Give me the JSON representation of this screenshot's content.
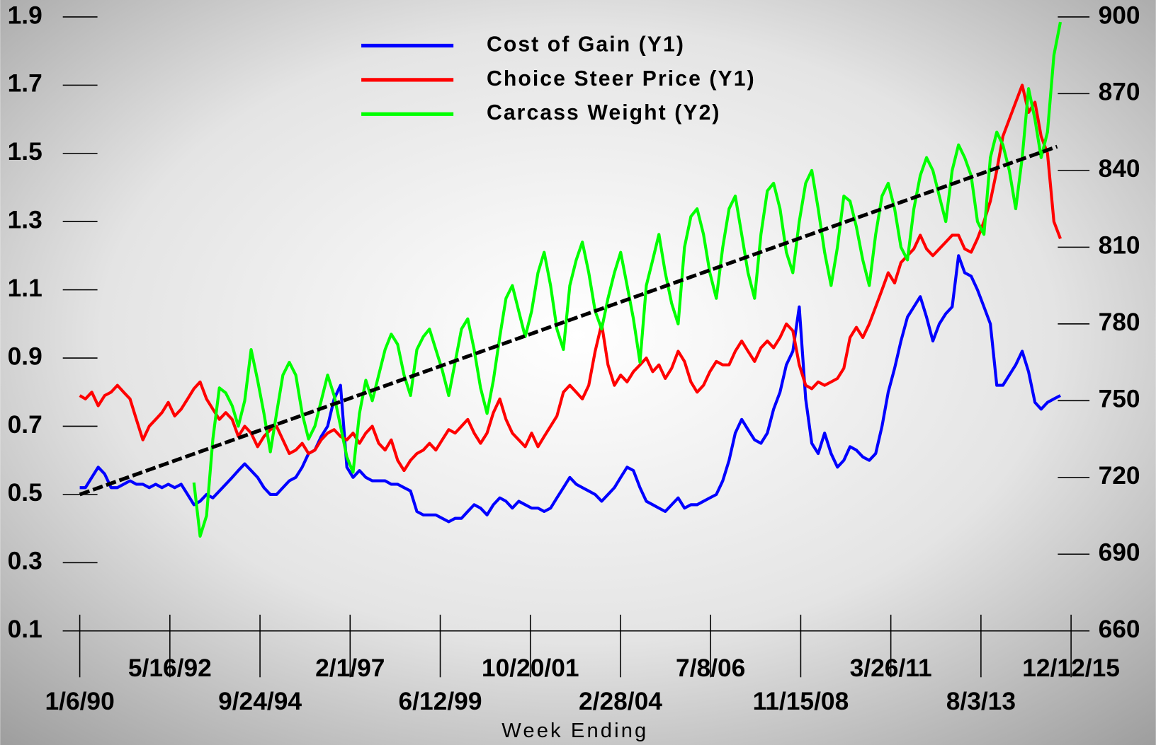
{
  "chart_data": {
    "type": "line",
    "x_label": "Week Ending",
    "xlim": [
      "1/6/90",
      "12/12/15"
    ],
    "xticks": [
      "1/6/90",
      "5/16/92",
      "9/24/94",
      "2/1/97",
      "6/12/99",
      "10/20/01",
      "2/28/04",
      "7/8/06",
      "11/15/08",
      "3/26/11",
      "8/3/13",
      "12/12/15"
    ],
    "ylim": [
      0.1,
      1.9
    ],
    "yticks": [
      0.1,
      0.3,
      0.5,
      0.7,
      0.9,
      1.1,
      1.3,
      1.5,
      1.7,
      1.9
    ],
    "y2lim": [
      660,
      900
    ],
    "y2ticks": [
      660,
      690,
      720,
      750,
      780,
      810,
      840,
      870,
      900
    ],
    "legend": "top",
    "x": [
      "1/6/90",
      "3/1/90",
      "5/1/90",
      "7/1/90",
      "9/1/90",
      "11/1/90",
      "1/1/91",
      "3/1/91",
      "5/1/91",
      "7/1/91",
      "9/1/91",
      "11/1/91",
      "1/1/92",
      "3/1/92",
      "5/1/92",
      "7/1/92",
      "9/1/92",
      "11/1/92",
      "1/1/93",
      "3/1/93",
      "5/1/93",
      "7/1/93",
      "9/1/93",
      "11/1/93",
      "1/1/94",
      "3/1/94",
      "5/1/94",
      "7/1/94",
      "9/1/94",
      "11/1/94",
      "1/1/95",
      "3/1/95",
      "5/1/95",
      "7/1/95",
      "9/1/95",
      "11/1/95",
      "1/1/96",
      "3/1/96",
      "5/1/96",
      "7/1/96",
      "9/1/96",
      "11/1/96",
      "1/1/97",
      "3/1/97",
      "5/1/97",
      "7/1/97",
      "9/1/97",
      "11/1/97",
      "1/1/98",
      "3/1/98",
      "5/1/98",
      "7/1/98",
      "9/1/98",
      "11/1/98",
      "1/1/99",
      "3/1/99",
      "5/1/99",
      "7/1/99",
      "9/1/99",
      "11/1/99",
      "1/1/00",
      "3/1/00",
      "5/1/00",
      "7/1/00",
      "9/1/00",
      "11/1/00",
      "1/1/01",
      "3/1/01",
      "5/1/01",
      "7/1/01",
      "9/1/01",
      "11/1/01",
      "1/1/02",
      "3/1/02",
      "5/1/02",
      "7/1/02",
      "9/1/02",
      "11/1/02",
      "1/1/03",
      "3/1/03",
      "5/1/03",
      "7/1/03",
      "9/1/03",
      "11/1/03",
      "1/1/04",
      "3/1/04",
      "5/1/04",
      "7/1/04",
      "9/1/04",
      "11/1/04",
      "1/1/05",
      "3/1/05",
      "5/1/05",
      "7/1/05",
      "9/1/05",
      "11/1/05",
      "1/1/06",
      "3/1/06",
      "5/1/06",
      "7/1/06",
      "9/1/06",
      "11/1/06",
      "1/1/07",
      "3/1/07",
      "5/1/07",
      "7/1/07",
      "9/1/07",
      "11/1/07",
      "1/1/08",
      "3/1/08",
      "5/1/08",
      "7/1/08",
      "9/1/08",
      "11/1/08",
      "1/1/09",
      "3/1/09",
      "5/1/09",
      "7/1/09",
      "9/1/09",
      "11/1/09",
      "1/1/10",
      "3/1/10",
      "5/1/10",
      "7/1/10",
      "9/1/10",
      "11/1/10",
      "1/1/11",
      "3/1/11",
      "5/1/11",
      "7/1/11",
      "9/1/11",
      "11/1/11",
      "1/1/12",
      "3/1/12",
      "5/1/12",
      "7/1/12",
      "9/1/12",
      "11/1/12",
      "1/1/13",
      "3/1/13",
      "5/1/13",
      "7/1/13",
      "9/1/13",
      "11/1/13",
      "1/1/14",
      "3/1/14",
      "5/1/14",
      "7/1/14",
      "9/1/14",
      "11/1/14",
      "1/1/15",
      "3/1/15",
      "5/1/15",
      "7/1/15",
      "9/1/15"
    ],
    "series": [
      {
        "name": "Cost of Gain (Y1)",
        "color": "#0000ff",
        "values": [
          0.52,
          0.52,
          0.55,
          0.58,
          0.56,
          0.52,
          0.52,
          0.53,
          0.54,
          0.53,
          0.53,
          0.52,
          0.53,
          0.52,
          0.53,
          0.52,
          0.53,
          0.5,
          0.47,
          0.48,
          0.5,
          0.49,
          0.51,
          0.53,
          0.55,
          0.57,
          0.59,
          0.57,
          0.55,
          0.52,
          0.5,
          0.5,
          0.52,
          0.54,
          0.55,
          0.58,
          0.62,
          0.63,
          0.67,
          0.7,
          0.78,
          0.82,
          0.58,
          0.55,
          0.57,
          0.55,
          0.54,
          0.54,
          0.54,
          0.53,
          0.53,
          0.52,
          0.51,
          0.45,
          0.44,
          0.44,
          0.44,
          0.43,
          0.42,
          0.43,
          0.43,
          0.45,
          0.47,
          0.46,
          0.44,
          0.47,
          0.49,
          0.48,
          0.46,
          0.48,
          0.47,
          0.46,
          0.46,
          0.45,
          0.46,
          0.49,
          0.52,
          0.55,
          0.53,
          0.52,
          0.51,
          0.5,
          0.48,
          0.5,
          0.52,
          0.55,
          0.58,
          0.57,
          0.52,
          0.48,
          0.47,
          0.46,
          0.45,
          0.47,
          0.49,
          0.46,
          0.47,
          0.47,
          0.48,
          0.49,
          0.5,
          0.54,
          0.6,
          0.68,
          0.72,
          0.69,
          0.66,
          0.65,
          0.68,
          0.75,
          0.8,
          0.88,
          0.92,
          1.05,
          0.78,
          0.65,
          0.62,
          0.68,
          0.62,
          0.58,
          0.6,
          0.64,
          0.63,
          0.61,
          0.6,
          0.62,
          0.7,
          0.8,
          0.87,
          0.95,
          1.02,
          1.05,
          1.08,
          1.02,
          0.95,
          1.0,
          1.03,
          1.05,
          1.2,
          1.15,
          1.14,
          1.1,
          1.05,
          1.0,
          0.82,
          0.82,
          0.85,
          0.88,
          0.92,
          0.86,
          0.77,
          0.75,
          0.77,
          0.78,
          0.79
        ]
      },
      {
        "name": "Choice Steer Price (Y1)",
        "color": "#ff0000",
        "values": [
          0.79,
          0.78,
          0.8,
          0.76,
          0.79,
          0.8,
          0.82,
          0.8,
          0.78,
          0.72,
          0.66,
          0.7,
          0.72,
          0.74,
          0.77,
          0.73,
          0.75,
          0.78,
          0.81,
          0.83,
          0.78,
          0.75,
          0.72,
          0.74,
          0.72,
          0.67,
          0.7,
          0.68,
          0.64,
          0.67,
          0.69,
          0.7,
          0.66,
          0.62,
          0.63,
          0.65,
          0.62,
          0.63,
          0.66,
          0.68,
          0.69,
          0.67,
          0.66,
          0.68,
          0.65,
          0.68,
          0.7,
          0.65,
          0.63,
          0.66,
          0.6,
          0.57,
          0.6,
          0.62,
          0.63,
          0.65,
          0.63,
          0.66,
          0.69,
          0.68,
          0.7,
          0.72,
          0.68,
          0.65,
          0.68,
          0.74,
          0.78,
          0.72,
          0.68,
          0.66,
          0.64,
          0.68,
          0.64,
          0.67,
          0.7,
          0.73,
          0.8,
          0.82,
          0.8,
          0.78,
          0.82,
          0.92,
          1.0,
          0.88,
          0.82,
          0.85,
          0.83,
          0.86,
          0.88,
          0.9,
          0.86,
          0.88,
          0.84,
          0.87,
          0.92,
          0.89,
          0.83,
          0.8,
          0.82,
          0.86,
          0.89,
          0.88,
          0.88,
          0.92,
          0.95,
          0.92,
          0.89,
          0.93,
          0.95,
          0.93,
          0.96,
          1.0,
          0.98,
          0.88,
          0.82,
          0.81,
          0.83,
          0.82,
          0.83,
          0.84,
          0.87,
          0.96,
          0.99,
          0.96,
          1.0,
          1.05,
          1.1,
          1.15,
          1.12,
          1.18,
          1.2,
          1.22,
          1.26,
          1.22,
          1.2,
          1.22,
          1.24,
          1.26,
          1.26,
          1.22,
          1.21,
          1.25,
          1.3,
          1.36,
          1.45,
          1.55,
          1.6,
          1.65,
          1.7,
          1.62,
          1.65,
          1.55,
          1.5,
          1.3,
          1.25
        ]
      },
      {
        "name": "Carcass Weight (Y2)",
        "color": "#00ff00",
        "axis": "y2",
        "values": [
          null,
          null,
          null,
          null,
          null,
          null,
          null,
          null,
          null,
          null,
          null,
          null,
          null,
          null,
          null,
          null,
          null,
          null,
          718,
          697,
          705,
          735,
          755,
          753,
          748,
          740,
          750,
          770,
          758,
          745,
          730,
          745,
          760,
          765,
          760,
          745,
          735,
          740,
          750,
          760,
          752,
          740,
          728,
          722,
          745,
          758,
          750,
          760,
          770,
          776,
          772,
          760,
          752,
          770,
          775,
          778,
          770,
          762,
          752,
          765,
          778,
          782,
          770,
          755,
          745,
          758,
          775,
          790,
          795,
          785,
          775,
          785,
          800,
          808,
          795,
          778,
          770,
          795,
          805,
          812,
          800,
          785,
          778,
          790,
          800,
          808,
          795,
          782,
          765,
          795,
          805,
          815,
          800,
          788,
          780,
          810,
          822,
          825,
          815,
          800,
          790,
          810,
          825,
          830,
          815,
          800,
          790,
          815,
          832,
          835,
          825,
          808,
          800,
          820,
          835,
          840,
          825,
          808,
          795,
          810,
          830,
          828,
          818,
          805,
          795,
          815,
          830,
          835,
          825,
          810,
          805,
          825,
          838,
          845,
          840,
          830,
          820,
          840,
          850,
          845,
          838,
          820,
          815,
          845,
          855,
          850,
          840,
          825,
          845,
          872,
          860,
          845,
          855,
          885,
          898
        ]
      }
    ],
    "trend": {
      "color": "#000000",
      "x": [
        "1/6/90",
        "8/1/15"
      ],
      "values": [
        0.5,
        1.52
      ]
    }
  }
}
